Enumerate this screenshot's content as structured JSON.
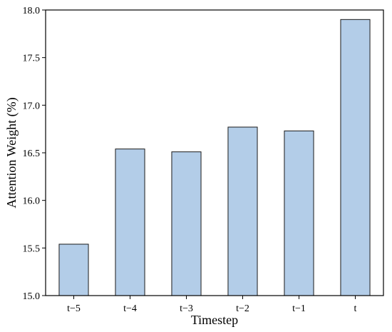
{
  "chart_data": {
    "type": "bar",
    "title": "",
    "xlabel": "Timestep",
    "ylabel": "Attention Weight (%)",
    "categories": [
      "t−5",
      "t−4",
      "t−3",
      "t−2",
      "t−1",
      "t"
    ],
    "values": [
      15.54,
      16.54,
      16.51,
      16.77,
      16.73,
      17.9
    ],
    "ylim": [
      15.0,
      18.0
    ],
    "yticks": [
      "15.0",
      "15.5",
      "16.0",
      "16.5",
      "17.0",
      "17.5",
      "18.0"
    ],
    "grid": false,
    "colors": {
      "bar_fill": "#b3cde8",
      "bar_stroke": "#1a1a1a",
      "axis": "#000000"
    }
  }
}
